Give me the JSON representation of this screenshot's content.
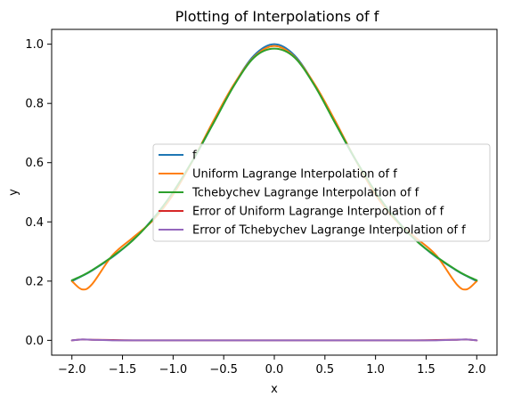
{
  "chart_data": {
    "type": "line",
    "title": "Plotting of Interpolations of f",
    "xlabel": "x",
    "ylabel": "y",
    "xlim": [
      -2.2,
      2.2
    ],
    "ylim": [
      -0.05,
      1.05
    ],
    "xticks": [
      -2.0,
      -1.5,
      -1.0,
      -0.5,
      0.0,
      0.5,
      1.0,
      1.5,
      2.0
    ],
    "xtick_labels": [
      "−2.0",
      "−1.5",
      "−1.0",
      "−0.5",
      "0.0",
      "0.5",
      "1.0",
      "1.5",
      "2.0"
    ],
    "yticks": [
      0.0,
      0.2,
      0.4,
      0.6,
      0.8,
      1.0
    ],
    "ytick_labels": [
      "0.0",
      "0.2",
      "0.4",
      "0.6",
      "0.8",
      "1.0"
    ],
    "grid": false,
    "legend_position": "center-right",
    "x": [
      -2.0,
      -1.9,
      -1.8,
      -1.6,
      -1.4,
      -1.2,
      -1.0,
      -0.8,
      -0.6,
      -0.4,
      -0.2,
      0.0,
      0.2,
      0.4,
      0.6,
      0.8,
      1.0,
      1.2,
      1.4,
      1.6,
      1.8,
      1.9,
      2.0
    ],
    "series": [
      {
        "name": "f",
        "color": "#1f77b4",
        "values": [
          0.2,
          0.217,
          0.236,
          0.281,
          0.338,
          0.41,
          0.5,
          0.61,
          0.735,
          0.862,
          0.962,
          1.0,
          0.962,
          0.862,
          0.735,
          0.61,
          0.5,
          0.41,
          0.338,
          0.281,
          0.236,
          0.217,
          0.2
        ]
      },
      {
        "name": "Uniform Lagrange Interpolation of f",
        "color": "#ff7f0e",
        "values": [
          0.2,
          0.172,
          0.19,
          0.287,
          0.346,
          0.405,
          0.492,
          0.611,
          0.742,
          0.864,
          0.957,
          0.994,
          0.957,
          0.864,
          0.742,
          0.611,
          0.492,
          0.405,
          0.346,
          0.287,
          0.19,
          0.172,
          0.2
        ]
      },
      {
        "name": "Tchebychev Lagrange Interpolation of f",
        "color": "#2ca02c",
        "values": [
          0.203,
          0.218,
          0.237,
          0.283,
          0.337,
          0.409,
          0.501,
          0.612,
          0.734,
          0.859,
          0.955,
          0.985,
          0.955,
          0.859,
          0.734,
          0.612,
          0.501,
          0.409,
          0.337,
          0.283,
          0.237,
          0.218,
          0.203
        ]
      },
      {
        "name": "Error of Uniform Lagrange Interpolation of f",
        "color": "#d62728",
        "values": [
          0.0,
          0.003,
          0.002,
          0.001,
          0.0,
          0.0,
          0.0,
          0.0,
          0.0,
          0.0,
          0.0,
          0.0,
          0.0,
          0.0,
          0.0,
          0.0,
          0.0,
          0.0,
          0.0,
          0.001,
          0.002,
          0.003,
          0.0
        ]
      },
      {
        "name": "Error of Tchebychev Lagrange Interpolation of f",
        "color": "#9467bd",
        "values": [
          0.0,
          0.003,
          0.002,
          0.0,
          0.0,
          0.0,
          0.0,
          0.0,
          0.0,
          0.0,
          0.0,
          0.0,
          0.0,
          0.0,
          0.0,
          0.0,
          0.0,
          0.0,
          0.0,
          0.0,
          0.002,
          0.003,
          0.0
        ]
      }
    ]
  }
}
